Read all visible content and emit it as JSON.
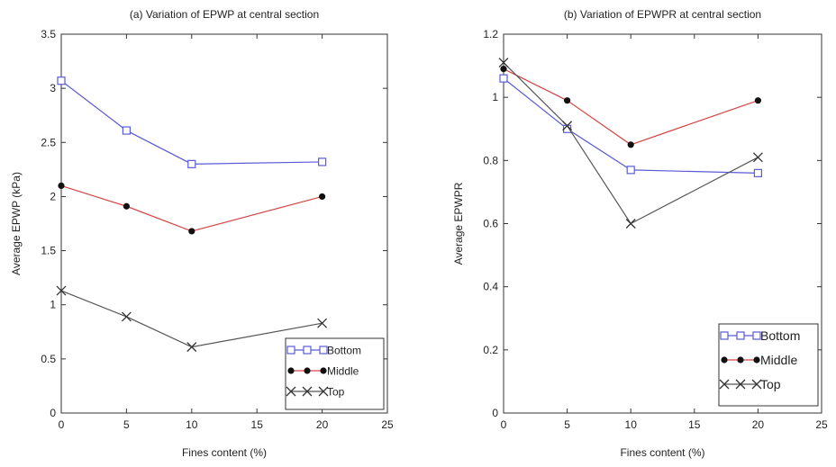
{
  "chart_data": [
    {
      "type": "line",
      "title": "(a)  Variation of EPWP at central section",
      "xlabel": "Fines content (%)",
      "ylabel": "Average EPWP (kPa)",
      "xlim": [
        0,
        25
      ],
      "ylim": [
        0,
        3.5
      ],
      "x_ticks": [
        "0",
        "5",
        "10",
        "15",
        "20",
        "25"
      ],
      "y_ticks": [
        "0",
        "0.5",
        "1",
        "1.5",
        "2",
        "2.5",
        "3",
        "3.5"
      ],
      "x": [
        0,
        5,
        10,
        20
      ],
      "grid": false,
      "legend_position": "bottom-right",
      "series": [
        {
          "name": "Bottom",
          "values": [
            3.07,
            2.61,
            2.3,
            2.32
          ],
          "color": "#5b5bd6",
          "marker": "square"
        },
        {
          "name": "Middle",
          "values": [
            2.1,
            1.91,
            1.68,
            2.0
          ],
          "color": "#d64545",
          "marker": "dot"
        },
        {
          "name": "Top",
          "values": [
            1.13,
            0.89,
            0.61,
            0.83
          ],
          "color": "#555555",
          "marker": "x"
        }
      ]
    },
    {
      "type": "line",
      "title": "(b)  Variation of EPWPR at central section",
      "xlabel": "Fines content (%)",
      "ylabel": "Average EPWPR",
      "xlim": [
        0,
        25
      ],
      "ylim": [
        0,
        1.2
      ],
      "x_ticks": [
        "0",
        "5",
        "10",
        "15",
        "20",
        "25"
      ],
      "y_ticks": [
        "0",
        "0.2",
        "0.4",
        "0.6",
        "0.8",
        "1",
        "1.2"
      ],
      "x": [
        0,
        5,
        10,
        20
      ],
      "grid": false,
      "legend_position": "bottom-right",
      "series": [
        {
          "name": "Bottom",
          "values": [
            1.06,
            0.9,
            0.77,
            0.76
          ],
          "color": "#5b5bd6",
          "marker": "square"
        },
        {
          "name": "Middle",
          "values": [
            1.09,
            0.99,
            0.85,
            0.99
          ],
          "color": "#d64545",
          "marker": "dot"
        },
        {
          "name": "Top",
          "values": [
            1.11,
            0.91,
            0.6,
            0.81
          ],
          "color": "#555555",
          "marker": "x"
        }
      ]
    }
  ]
}
